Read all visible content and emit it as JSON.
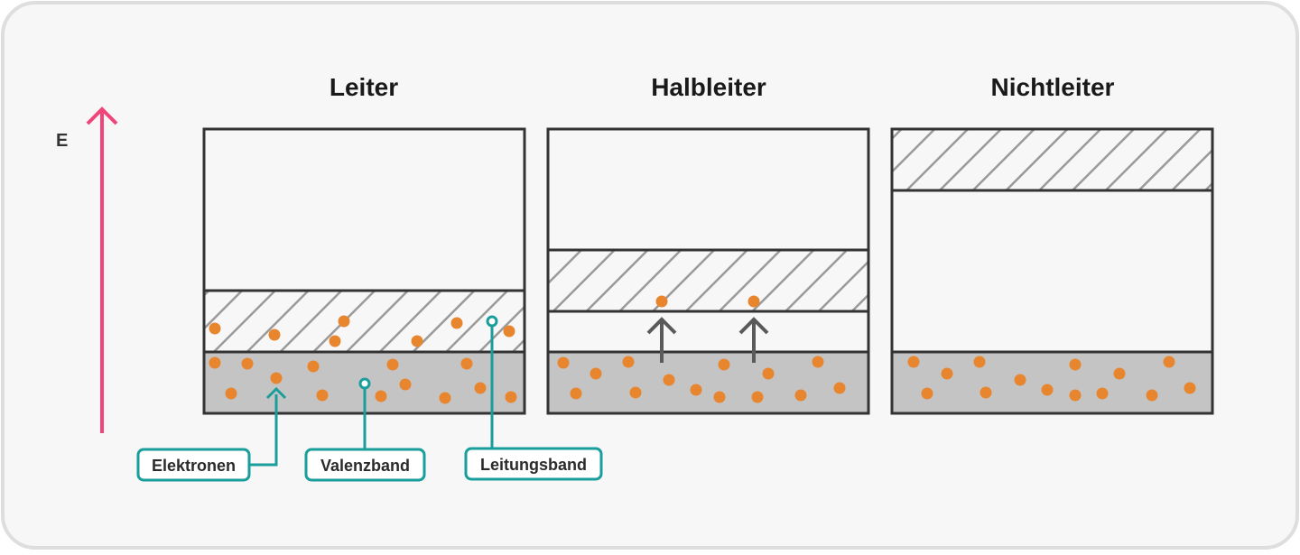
{
  "axis": {
    "label": "E",
    "color": "#f0457a"
  },
  "panels": [
    {
      "title": "Leiter"
    },
    {
      "title": "Halbleiter"
    },
    {
      "title": "Nichtleiter"
    }
  ],
  "callouts": {
    "electrons": "Elektronen",
    "valence_band": "Valenzband",
    "conduction_band": "Leitungsband"
  },
  "colors": {
    "frame_background": "#f7f7f7",
    "frame_border": "#dedede",
    "band_outline": "#333333",
    "valence_fill": "#c4c4c4",
    "hatch": "#9a9a9a",
    "electron": "#e8862f",
    "callout": "#1a9e9b",
    "excitation_arrow": "#5a5a5a"
  },
  "icons": [
    "energy-arrow-icon",
    "excitation-arrow-icon",
    "callout-ring-icon"
  ]
}
